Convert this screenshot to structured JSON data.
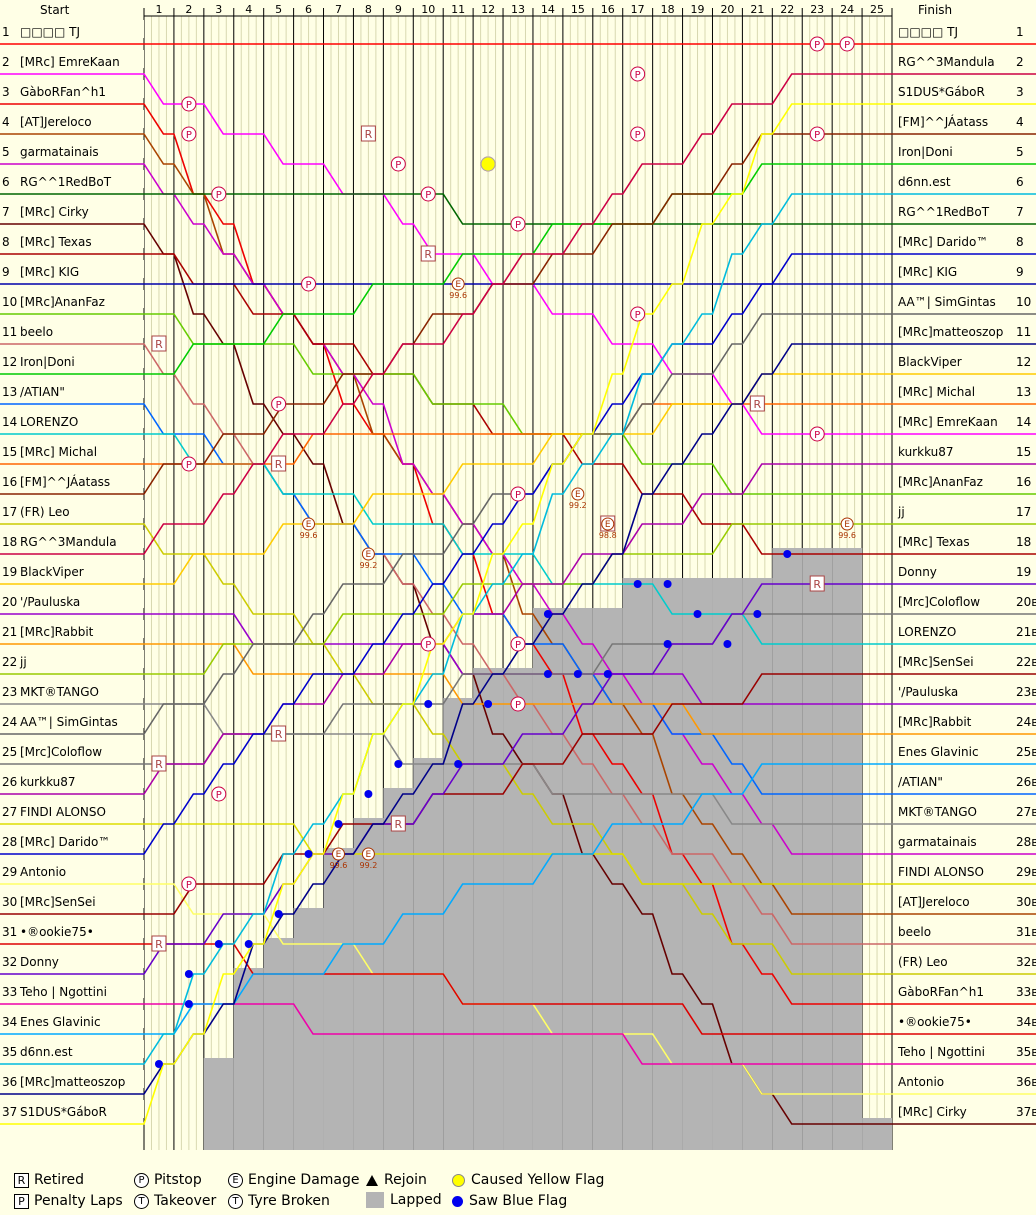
{
  "header": {
    "start": "Start",
    "finish": "Finish"
  },
  "laps": [
    "1",
    "2",
    "3",
    "4",
    "5",
    "6",
    "7",
    "8",
    "9",
    "10",
    "11",
    "12",
    "13",
    "14",
    "15",
    "16",
    "17",
    "18",
    "19",
    "20",
    "21",
    "22",
    "23",
    "24",
    "25"
  ],
  "positions": [
    "1",
    "2",
    "3",
    "4",
    "5",
    "6",
    "7",
    "8",
    "9",
    "10",
    "11",
    "12",
    "13",
    "14",
    "15",
    "16",
    "17",
    "18",
    "19",
    "20",
    "21",
    "22",
    "23",
    "24",
    "25",
    "26",
    "27",
    "28",
    "29",
    "30",
    "31",
    "32",
    "33",
    "34",
    "35",
    "36",
    "37"
  ],
  "finish_position_labels": [
    "1",
    "2",
    "3",
    "4",
    "5",
    "6",
    "7",
    "8",
    "9",
    "10",
    "11",
    "12",
    "13",
    "14",
    "15",
    "16",
    "17",
    "18",
    "19",
    "20в",
    "21в",
    "22в",
    "23в",
    "24в",
    "25в",
    "26в",
    "27в",
    "28в",
    "29в",
    "30в",
    "31в",
    "32в",
    "33в",
    "34в",
    "35в",
    "36в",
    "37в"
  ],
  "start_names": [
    "□□□□ TJ",
    "[MRc] EmreKaan",
    "GàboRFan^h1",
    "[AT]Jereloco",
    "garmatainais",
    "RG^^1RedBoT",
    "[MRc] Cirky",
    "[MRc] Texas",
    "[MRc] KIG",
    "[MRc]AnanFaz",
    "beelo",
    "Iron|Doni",
    "/ATIAN\"",
    "LORENZO",
    "[MRc] Michal",
    "[FM]^^JÁatass",
    "(FR) Leo",
    "RG^^3Mandula",
    "BlackViper",
    "'/Pauluska",
    "[MRc]Rabbit",
    "jj",
    "MKT®TANGO",
    "AA™| SimGintas",
    "[Mrc]Coloflow",
    "kurkku87",
    "FINDI ALONSO",
    "[MRc] Darido™",
    "Antonio",
    "[MRc]SenSei",
    "•®ookie75•",
    "Donny",
    "Teho | Ngottini",
    "Enes Glavinic",
    "d6nn.est",
    "[MRc]matteoszop",
    "S1DUS*GáboR"
  ],
  "finish_names": [
    "□□□□ TJ",
    "RG^^3Mandula",
    "S1DUS*GáboR",
    "[FM]^^JÁatass",
    "Iron|Doni",
    "d6nn.est",
    "RG^^1RedBoT",
    "[MRc] Darido™",
    "[MRc] KIG",
    "AA™| SimGintas",
    "[MRc]matteoszop",
    "BlackViper",
    "[MRc] Michal",
    "[MRc] EmreKaan",
    "kurkku87",
    "[MRc]AnanFaz",
    "jj",
    "[MRc] Texas",
    "Donny",
    "[Mrc]Coloflow",
    "LORENZO",
    "[MRc]SenSei",
    "'/Pauluska",
    "[MRc]Rabbit",
    "Enes Glavinic",
    "/ATIAN\"",
    "MKT®TANGO",
    "garmatainais",
    "FINDI ALONSO",
    "[AT]Jereloco",
    "beelo",
    "(FR) Leo",
    "GàboRFan^h1",
    "•®ookie75•",
    "Teho | Ngottini",
    "Antonio",
    "[MRc] Cirky"
  ],
  "colors": [
    "#ff0000",
    "#ff00ff",
    "#ee0000",
    "#aa4400",
    "#cc00cc",
    "#006600",
    "#660000",
    "#aa0000",
    "#0000aa",
    "#66cc00",
    "#cc6666",
    "#00cc00",
    "#0066ff",
    "#00cccc",
    "#ff6600",
    "#882200",
    "#cccc00",
    "#cc0044",
    "#ffcc00",
    "#9900cc",
    "#ff9900",
    "#99cc00",
    "#888888",
    "#666666",
    "#777777",
    "#aa00aa",
    "#dddd00",
    "#0000cc",
    "#ffff66",
    "#990000",
    "#dd0000",
    "#6600cc",
    "#ee00aa",
    "#00aaff",
    "#00bbdd",
    "#000088",
    "#ffff00"
  ],
  "chart_data": {
    "type": "line",
    "x_label": "Lap",
    "laps": 25,
    "num_drivers": 37,
    "lapped_after_lap": [
      0,
      0,
      35,
      32,
      31,
      30,
      28,
      27,
      26,
      25,
      23,
      22,
      22,
      20,
      20,
      20,
      19,
      19,
      19,
      19,
      19,
      18,
      18,
      18,
      37
    ],
    "series": [
      {
        "start": 1,
        "finish": 1
      },
      {
        "start": 2,
        "finish": 14
      },
      {
        "start": 3,
        "finish": 33
      },
      {
        "start": 4,
        "finish": 30
      },
      {
        "start": 5,
        "finish": 28
      },
      {
        "start": 6,
        "finish": 7
      },
      {
        "start": 7,
        "finish": 37
      },
      {
        "start": 8,
        "finish": 18
      },
      {
        "start": 9,
        "finish": 9
      },
      {
        "start": 10,
        "finish": 16
      },
      {
        "start": 11,
        "finish": 31
      },
      {
        "start": 12,
        "finish": 5
      },
      {
        "start": 13,
        "finish": 26
      },
      {
        "start": 14,
        "finish": 21
      },
      {
        "start": 15,
        "finish": 13
      },
      {
        "start": 16,
        "finish": 4
      },
      {
        "start": 17,
        "finish": 32
      },
      {
        "start": 18,
        "finish": 2
      },
      {
        "start": 19,
        "finish": 12
      },
      {
        "start": 20,
        "finish": 23
      },
      {
        "start": 21,
        "finish": 24
      },
      {
        "start": 22,
        "finish": 17
      },
      {
        "start": 23,
        "finish": 27
      },
      {
        "start": 24,
        "finish": 10
      },
      {
        "start": 25,
        "finish": 20
      },
      {
        "start": 26,
        "finish": 15
      },
      {
        "start": 27,
        "finish": 29
      },
      {
        "start": 28,
        "finish": 8
      },
      {
        "start": 29,
        "finish": 36
      },
      {
        "start": 30,
        "finish": 22
      },
      {
        "start": 31,
        "finish": 34
      },
      {
        "start": 32,
        "finish": 19
      },
      {
        "start": 33,
        "finish": 35
      },
      {
        "start": 34,
        "finish": 25
      },
      {
        "start": 35,
        "finish": 6
      },
      {
        "start": 36,
        "finish": 11
      },
      {
        "start": 37,
        "finish": 3
      }
    ],
    "events": [
      {
        "type": "pitstop",
        "lap": 23,
        "pos": 1
      },
      {
        "type": "pitstop",
        "lap": 24,
        "pos": 1
      },
      {
        "type": "pitstop",
        "lap": 17,
        "pos": 2
      },
      {
        "type": "pitstop",
        "lap": 2,
        "pos": 3
      },
      {
        "type": "pitstop",
        "lap": 2,
        "pos": 4
      },
      {
        "type": "pitstop",
        "lap": 17,
        "pos": 4
      },
      {
        "type": "pitstop",
        "lap": 23,
        "pos": 4
      },
      {
        "type": "pitstop",
        "lap": 9,
        "pos": 5
      },
      {
        "type": "pitstop",
        "lap": 12,
        "pos": 5
      },
      {
        "type": "pitstop",
        "lap": 3,
        "pos": 6
      },
      {
        "type": "pitstop",
        "lap": 10,
        "pos": 6
      },
      {
        "type": "pitstop",
        "lap": 13,
        "pos": 7
      },
      {
        "type": "pitstop",
        "lap": 6,
        "pos": 9
      },
      {
        "type": "pitstop",
        "lap": 17,
        "pos": 10
      },
      {
        "type": "pitstop",
        "lap": 5,
        "pos": 13
      },
      {
        "type": "pitstop",
        "lap": 23,
        "pos": 14
      },
      {
        "type": "pitstop",
        "lap": 2,
        "pos": 15
      },
      {
        "type": "pitstop",
        "lap": 13,
        "pos": 16
      },
      {
        "type": "pitstop",
        "lap": 10,
        "pos": 21
      },
      {
        "type": "pitstop",
        "lap": 13,
        "pos": 21
      },
      {
        "type": "pitstop",
        "lap": 13,
        "pos": 23
      },
      {
        "type": "pitstop",
        "lap": 3,
        "pos": 26
      },
      {
        "type": "pitstop",
        "lap": 2,
        "pos": 29
      },
      {
        "type": "retired",
        "lap": 8,
        "pos": 4
      },
      {
        "type": "retired",
        "lap": 10,
        "pos": 8
      },
      {
        "type": "retired",
        "lap": 1,
        "pos": 11
      },
      {
        "type": "retired",
        "lap": 5,
        "pos": 15
      },
      {
        "type": "retired",
        "lap": 16,
        "pos": 17
      },
      {
        "type": "retired",
        "lap": 21,
        "pos": 13
      },
      {
        "type": "retired",
        "lap": 23,
        "pos": 19
      },
      {
        "type": "retired",
        "lap": 5,
        "pos": 24
      },
      {
        "type": "retired",
        "lap": 1,
        "pos": 25
      },
      {
        "type": "retired",
        "lap": 9,
        "pos": 27
      },
      {
        "type": "retired",
        "lap": 1,
        "pos": 31
      },
      {
        "type": "engine",
        "lap": 11,
        "pos": 9,
        "label": "99.6"
      },
      {
        "type": "engine",
        "lap": 15,
        "pos": 16,
        "label": "99.2"
      },
      {
        "type": "engine",
        "lap": 16,
        "pos": 17,
        "label": "98.8"
      },
      {
        "type": "engine",
        "lap": 6,
        "pos": 17,
        "label": "99.6"
      },
      {
        "type": "engine",
        "lap": 8,
        "pos": 18,
        "label": "99.2"
      },
      {
        "type": "engine",
        "lap": 7,
        "pos": 28,
        "label": "99.6"
      },
      {
        "type": "engine",
        "lap": 8,
        "pos": 28,
        "label": "99.2"
      },
      {
        "type": "engine",
        "lap": 24,
        "pos": 17,
        "label": "99.6"
      },
      {
        "type": "yellow",
        "lap": 12,
        "pos": 5
      },
      {
        "type": "blue",
        "lap": 1,
        "pos": 35
      },
      {
        "type": "blue",
        "lap": 2,
        "pos": 32
      },
      {
        "type": "blue",
        "lap": 2,
        "pos": 33
      },
      {
        "type": "blue",
        "lap": 3,
        "pos": 31
      },
      {
        "type": "blue",
        "lap": 4,
        "pos": 31
      },
      {
        "type": "blue",
        "lap": 5,
        "pos": 30
      },
      {
        "type": "blue",
        "lap": 6,
        "pos": 28
      },
      {
        "type": "blue",
        "lap": 7,
        "pos": 27
      },
      {
        "type": "blue",
        "lap": 8,
        "pos": 26
      },
      {
        "type": "blue",
        "lap": 9,
        "pos": 25
      },
      {
        "type": "blue",
        "lap": 10,
        "pos": 23
      },
      {
        "type": "blue",
        "lap": 11,
        "pos": 25
      },
      {
        "type": "blue",
        "lap": 12,
        "pos": 23
      },
      {
        "type": "blue",
        "lap": 14,
        "pos": 20
      },
      {
        "type": "blue",
        "lap": 14,
        "pos": 22
      },
      {
        "type": "blue",
        "lap": 15,
        "pos": 22
      },
      {
        "type": "blue",
        "lap": 16,
        "pos": 22
      },
      {
        "type": "blue",
        "lap": 17,
        "pos": 19
      },
      {
        "type": "blue",
        "lap": 18,
        "pos": 19
      },
      {
        "type": "blue",
        "lap": 18,
        "pos": 21
      },
      {
        "type": "blue",
        "lap": 19,
        "pos": 20
      },
      {
        "type": "blue",
        "lap": 20,
        "pos": 21
      },
      {
        "type": "blue",
        "lap": 21,
        "pos": 20
      },
      {
        "type": "blue",
        "lap": 22,
        "pos": 18
      }
    ]
  },
  "legend": {
    "retired": "Retired",
    "penalty": "Penalty Laps",
    "pitstop": "Pitstop",
    "takeover": "Takeover",
    "engine": "Engine Damage",
    "tyre": "Tyre Broken",
    "rejoin": "Rejoin",
    "lapped": "Lapped",
    "yellow": "Caused Yellow Flag",
    "blue": "Saw Blue Flag",
    "icons": {
      "retired": "R",
      "penalty": "P",
      "pitstop": "P",
      "takeover": "T",
      "engine": "E",
      "tyre": "T"
    }
  }
}
